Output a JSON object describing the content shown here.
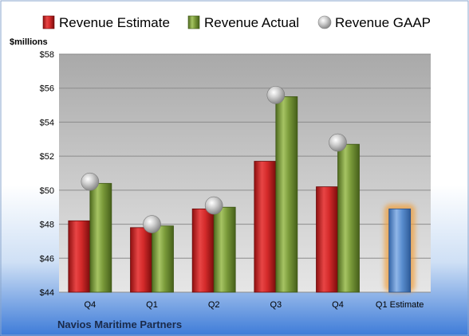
{
  "chart_data": {
    "type": "bar",
    "title": "",
    "company": "Navios Maritime Partners",
    "ylabel": "$millions",
    "xlabel": "",
    "ylim": [
      44,
      58
    ],
    "yticks": [
      44,
      46,
      48,
      50,
      52,
      54,
      56,
      58
    ],
    "ytick_labels": [
      "$44",
      "$46",
      "$48",
      "$50",
      "$52",
      "$54",
      "$56",
      "$58"
    ],
    "categories": [
      "Q4",
      "Q1",
      "Q2",
      "Q3",
      "Q4",
      "Q1 Estimate"
    ],
    "grid": true,
    "legend_position": "top",
    "series": [
      {
        "name": "Revenue Estimate",
        "type": "bar",
        "color": "#d42a2a",
        "values": [
          48.2,
          47.8,
          48.9,
          51.7,
          50.2,
          null
        ]
      },
      {
        "name": "Revenue Actual",
        "type": "bar",
        "color": "#7a9a3a",
        "values": [
          50.4,
          47.9,
          49.0,
          55.5,
          52.7,
          null
        ]
      },
      {
        "name": "Revenue GAAP",
        "type": "point",
        "color": "#b8b8b8",
        "values": [
          50.5,
          48.0,
          49.1,
          55.6,
          52.8,
          null
        ]
      }
    ],
    "estimate": {
      "category_index": 5,
      "value": 48.9,
      "color": "#5b8fd0",
      "glow_color": "#f0a040"
    }
  }
}
